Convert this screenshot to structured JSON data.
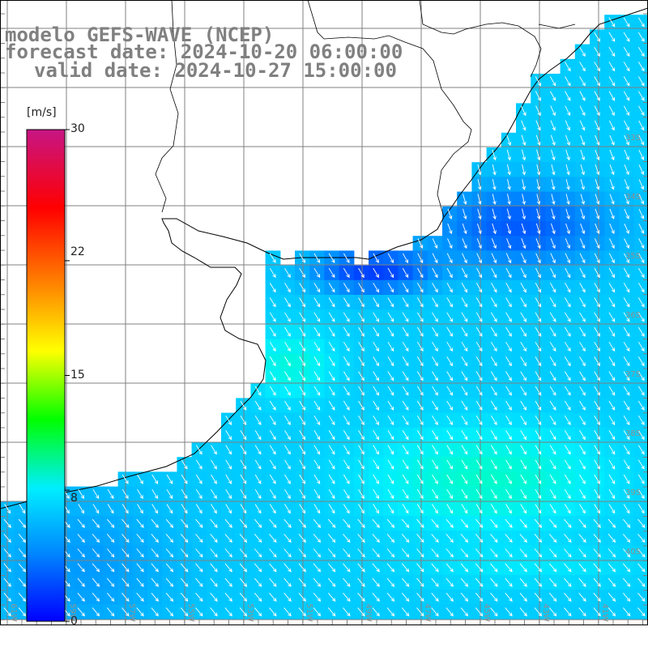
{
  "header": {
    "line1": "modelo GEFS-WAVE (NCEP)",
    "line2": "forecast date: 2024-10-20 06:00:00",
    "line3": "valid date: 2024-10-27 15:00:00"
  },
  "colorbar": {
    "unit": "[m/s]",
    "ticks": [
      "30",
      "22",
      "15",
      "8",
      "0"
    ],
    "tick_values": [
      30,
      22,
      15,
      8,
      0
    ],
    "min": 0,
    "max": 30,
    "colors": [
      "#0000ff",
      "#0088ff",
      "#00eeff",
      "#00ff00",
      "#ffff00",
      "#ff8800",
      "#ff0000",
      "#c71585"
    ]
  },
  "grid": {
    "lon_labels": [
      "61W",
      "59W",
      "57W",
      "55W",
      "53W",
      "51W",
      "49W",
      "47W",
      "45W",
      "43W",
      "41W"
    ],
    "lat_labels": [
      "33S",
      "34S",
      "35S",
      "36S",
      "37S",
      "38S",
      "39S",
      "40S"
    ]
  },
  "colors": {
    "land": "#ffffff",
    "coast": "#000000",
    "grid": "#808080",
    "arrows": "#ffffff",
    "title": "#808080"
  }
}
